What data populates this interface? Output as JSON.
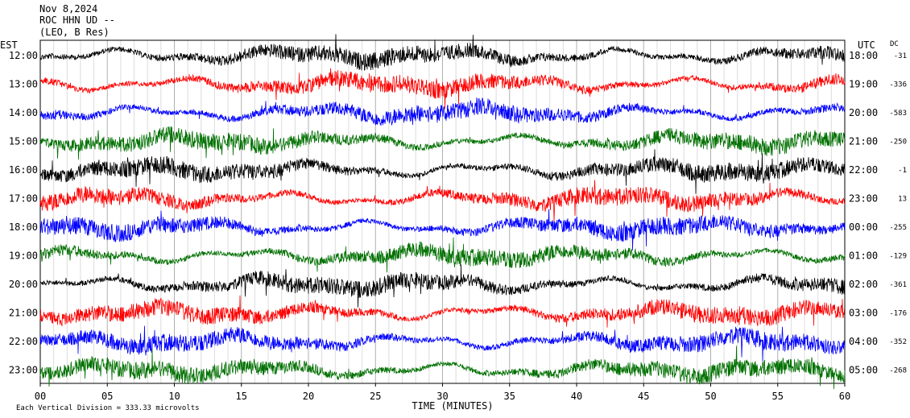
{
  "header": {
    "date": "Nov 8,2024",
    "station": "ROC HHN UD --",
    "network": "(LEO, B Res)"
  },
  "footer": {
    "scale_note": "Each Vertical Division =  333.33 microvolts"
  },
  "chart_data": {
    "type": "line",
    "subtype": "helicorder",
    "xlabel": "TIME (MINUTES)",
    "xlim": [
      0,
      60
    ],
    "x_ticks": [
      "00",
      "05",
      "10",
      "15",
      "20",
      "25",
      "30",
      "35",
      "40",
      "45",
      "50",
      "55",
      "60"
    ],
    "left_axis_label": "EST",
    "right_axis_label": "UTC",
    "dc_label": "DC",
    "grid": true,
    "trace_colors": [
      "#000000",
      "#ff0000",
      "#0000ff",
      "#007000"
    ],
    "rows": [
      {
        "est": "12:00",
        "utc": "18:00",
        "dc": "-31"
      },
      {
        "est": "13:00",
        "utc": "19:00",
        "dc": "-336"
      },
      {
        "est": "14:00",
        "utc": "20:00",
        "dc": "-583"
      },
      {
        "est": "15:00",
        "utc": "21:00",
        "dc": "-250"
      },
      {
        "est": "16:00",
        "utc": "22:00",
        "dc": "-1"
      },
      {
        "est": "17:00",
        "utc": "23:00",
        "dc": "13"
      },
      {
        "est": "18:00",
        "utc": "00:00",
        "dc": "-255"
      },
      {
        "est": "19:00",
        "utc": "01:00",
        "dc": "-129"
      },
      {
        "est": "20:00",
        "utc": "02:00",
        "dc": "-361"
      },
      {
        "est": "21:00",
        "utc": "03:00",
        "dc": "-176"
      },
      {
        "est": "22:00",
        "utc": "04:00",
        "dc": "-352"
      },
      {
        "est": "23:00",
        "utc": "05:00",
        "dc": "-268"
      }
    ]
  }
}
